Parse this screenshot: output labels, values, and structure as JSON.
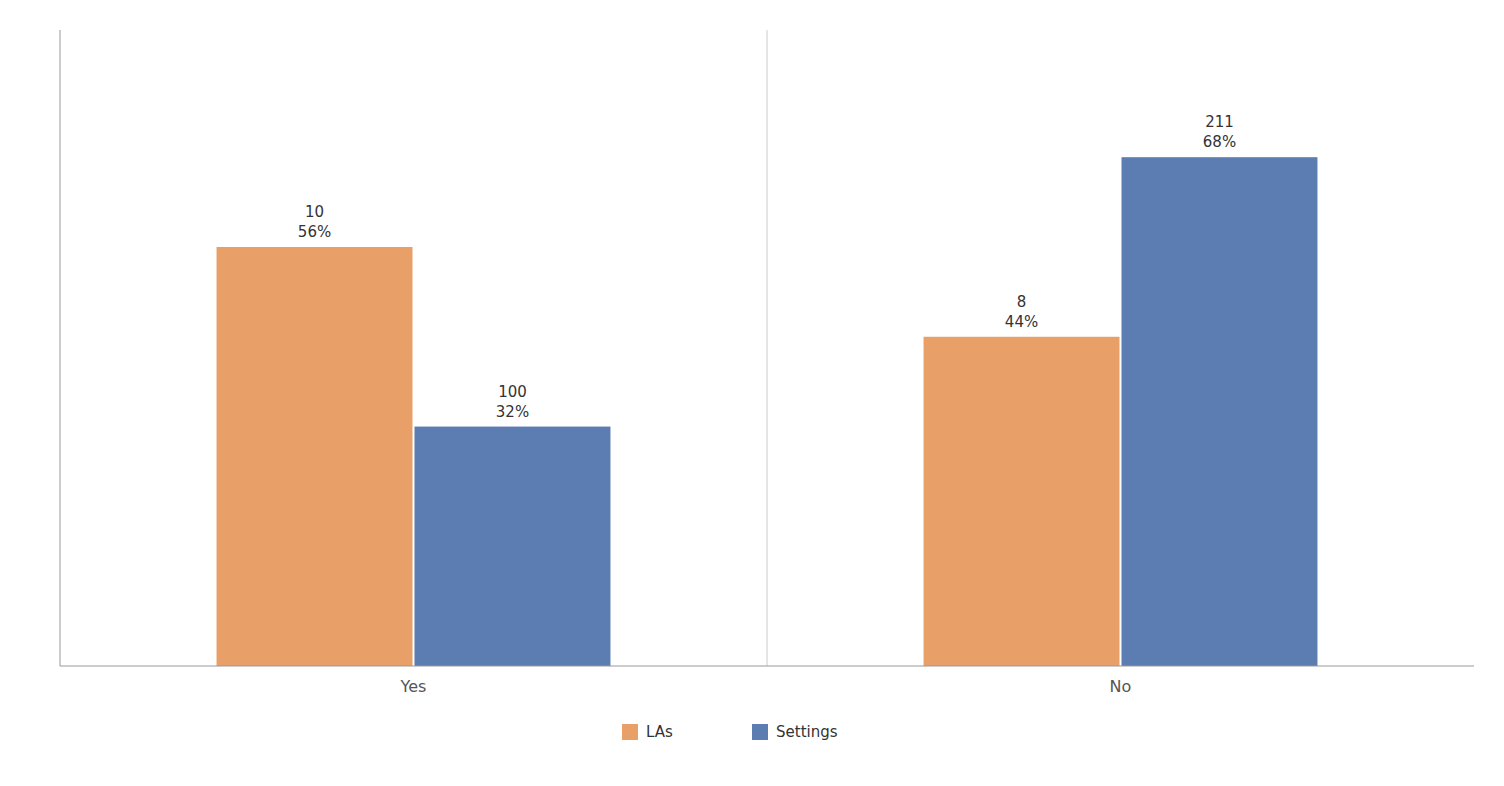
{
  "chart_data": {
    "type": "bar",
    "categories": [
      "Yes",
      "No"
    ],
    "series": [
      {
        "name": "LAs",
        "color": "#E8A068",
        "values": [
          56,
          44
        ],
        "value_labels": [
          "56%",
          "44%"
        ],
        "counts": [
          10,
          8
        ]
      },
      {
        "name": "Settings",
        "color": "#5B7DB1",
        "values": [
          32,
          68
        ],
        "value_labels": [
          "32%",
          "68%"
        ],
        "counts": [
          100,
          211
        ]
      }
    ],
    "ylim": [
      0,
      85
    ],
    "tick_labels": "x",
    "data_labels": true,
    "grid": false,
    "legend": "bottom"
  }
}
